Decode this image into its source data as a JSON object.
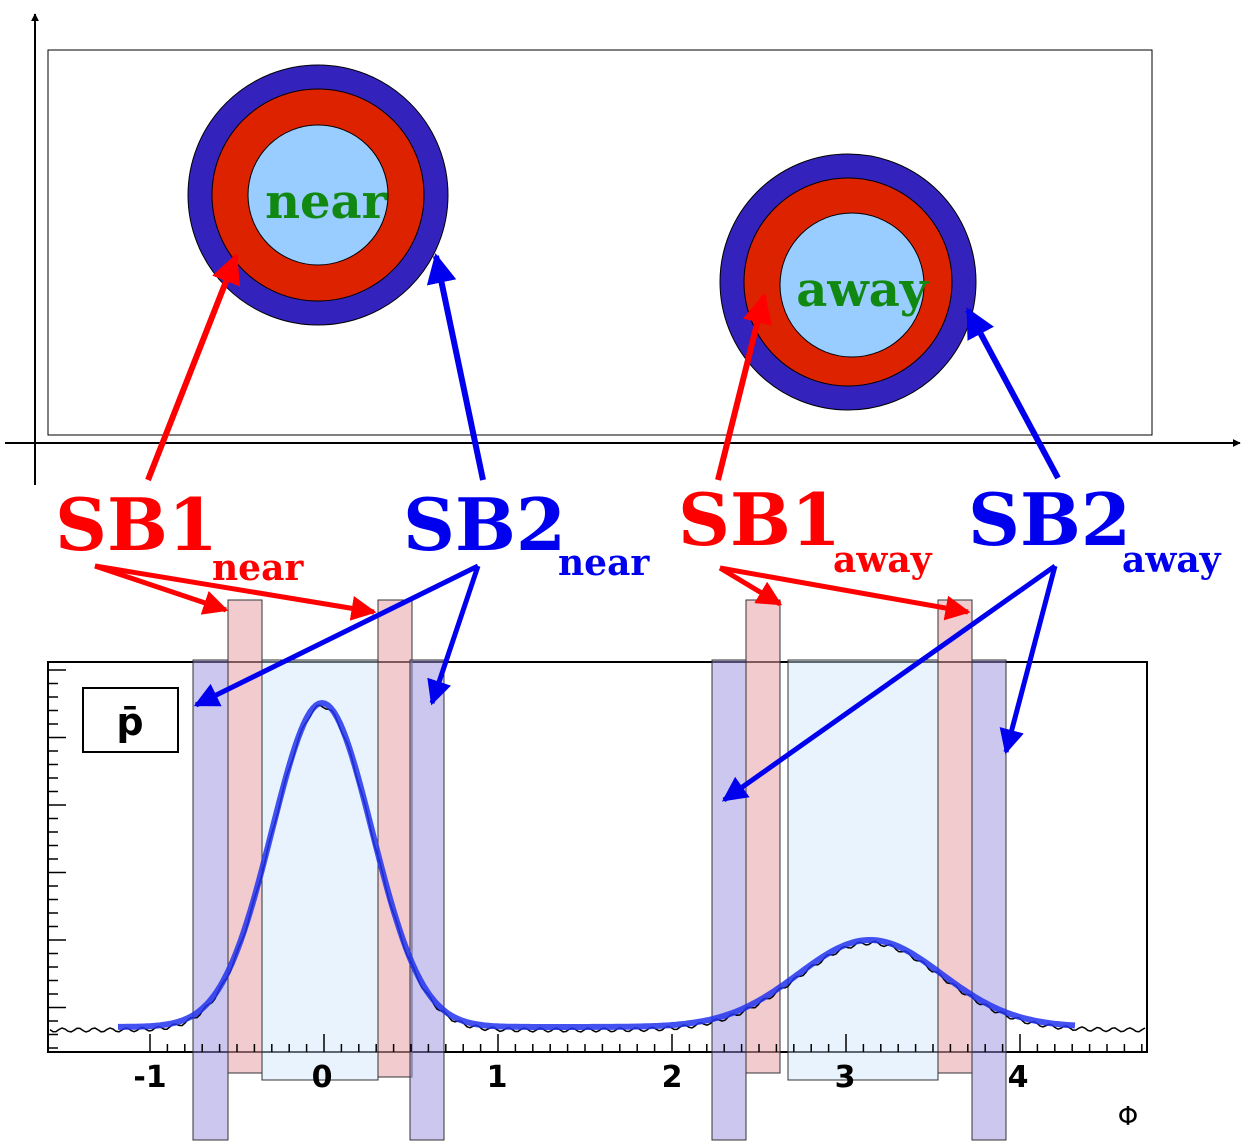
{
  "diagram": {
    "regions": [
      {
        "label": "near"
      },
      {
        "label": "away"
      }
    ],
    "sidebands": [
      {
        "name": "SB1",
        "sub": "near"
      },
      {
        "name": "SB2",
        "sub": "near"
      },
      {
        "name": "SB1",
        "sub": "away"
      },
      {
        "name": "SB2",
        "sub": "away"
      }
    ],
    "plot": {
      "legend": "p̄",
      "xticks": [
        "-1",
        "0",
        "1",
        "2",
        "3",
        "4"
      ],
      "xlabel": "Φ"
    }
  }
}
